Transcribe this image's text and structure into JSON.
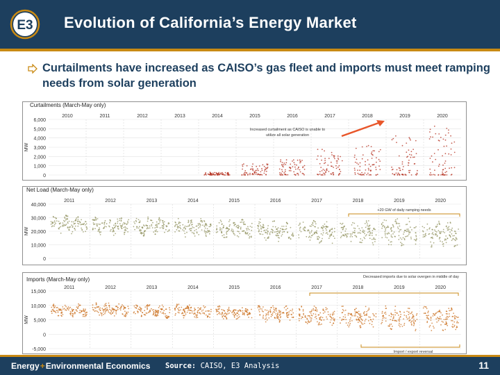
{
  "header": {
    "title": "Evolution of California’s Energy Market",
    "logo_text": "E3"
  },
  "bullet": {
    "text": "Curtailments have increased as CAISO’s gas fleet and imports must meet ramping needs from solar generation"
  },
  "colors": {
    "navy": "#1d3f5e",
    "gold": "#c98a14",
    "curtail": "#b32b1a",
    "netload": "#8a8c55",
    "imports": "#c8660f"
  },
  "chart_data": [
    {
      "type": "scatter",
      "title": "Curtailments (March-May only)",
      "ylabel": "MW",
      "ylim": [
        0,
        6000
      ],
      "yticks": [
        "6,000",
        "5,000",
        "4,000",
        "3,000",
        "2,000",
        "1,000",
        "0"
      ],
      "years": [
        "2010",
        "2011",
        "2012",
        "2013",
        "2014",
        "2015",
        "2016",
        "2017",
        "2018",
        "2019",
        "2020"
      ],
      "peak_by_year": [
        0,
        0,
        0,
        0,
        300,
        1200,
        1800,
        2800,
        3200,
        4500,
        5500
      ],
      "annotation": "Increased curtailment as CAISO is unable to utilize all solar generation"
    },
    {
      "type": "scatter",
      "title": "Net Load (March-May only)",
      "ylabel": "MW",
      "ylim": [
        0,
        40000
      ],
      "yticks": [
        "40,000",
        "30,000",
        "20,000",
        "10,000",
        "0"
      ],
      "years": [
        "2011",
        "2012",
        "2013",
        "2014",
        "2015",
        "2016",
        "2017",
        "2018",
        "2019",
        "2020"
      ],
      "range_by_year": [
        [
          18000,
          32000
        ],
        [
          17000,
          31000
        ],
        [
          16000,
          31000
        ],
        [
          15000,
          30000
        ],
        [
          14000,
          30000
        ],
        [
          12000,
          29000
        ],
        [
          11000,
          28000
        ],
        [
          10000,
          29000
        ],
        [
          9000,
          30000
        ],
        [
          8000,
          29000
        ]
      ],
      "annotation": "+20 GW of daily ramping needs"
    },
    {
      "type": "scatter",
      "title": "Imports (March-May only)",
      "ylabel": "MW",
      "ylim": [
        -5000,
        15000
      ],
      "yticks": [
        "15,000",
        "10,000",
        "5,000",
        "0",
        "-5,000"
      ],
      "years": [
        "2011",
        "2012",
        "2013",
        "2014",
        "2015",
        "2016",
        "2017",
        "2018",
        "2019",
        "2020"
      ],
      "range_by_year": [
        [
          6000,
          10500
        ],
        [
          6000,
          11000
        ],
        [
          5500,
          10500
        ],
        [
          5500,
          10500
        ],
        [
          5000,
          10000
        ],
        [
          4000,
          10500
        ],
        [
          3000,
          10000
        ],
        [
          2000,
          10000
        ],
        [
          1000,
          10500
        ],
        [
          500,
          10000
        ]
      ],
      "annotation_top": "Decreased imports due to solar overgen in middle of day",
      "annotation_bottom": "Import / export reversal"
    }
  ],
  "footer": {
    "brand_a": "Energy",
    "brand_plus": "+",
    "brand_b": "Environmental Economics",
    "source_label": "Source:",
    "source_text": "CAISO, E3 Analysis",
    "page": "11"
  }
}
